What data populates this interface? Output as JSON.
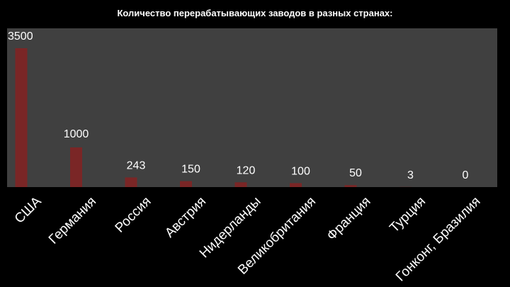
{
  "chart_data": {
    "type": "bar",
    "title": "Количество перерабатывающих заводов в разных странах:",
    "xlabel": "",
    "ylabel": "",
    "categories": [
      "США",
      "Германия",
      "Россия",
      "Австрия",
      "Нидерланды",
      "Великобритания",
      "Франция",
      "Турция",
      "Гонконг, Бразилия"
    ],
    "values": [
      3500,
      1000,
      243,
      150,
      120,
      100,
      50,
      3,
      0
    ],
    "value_labels": [
      "3500",
      "1000",
      "243",
      "150",
      "120",
      "100",
      "50",
      "3",
      "0"
    ],
    "ylim": [
      0,
      3500
    ],
    "grid": false,
    "legend": "none",
    "colors": {
      "background": "#000000",
      "plot_area": "#404040",
      "bar": "#7a2626",
      "text": "#ffffff"
    }
  }
}
